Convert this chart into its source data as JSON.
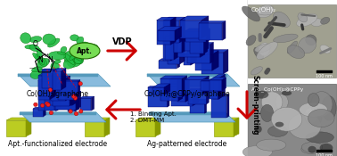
{
  "bg_color": "#ffffff",
  "top_left_label": "Co(OH)₂/graphene",
  "top_right_label": "Co(OH)₂@CPPy/graphene",
  "bot_left_label": "Apt.-functionalized electrode",
  "bot_right_label": "Ag-patterned electrode",
  "arrow_top_text": "VDP",
  "arrow_right_text": "Screen-printing",
  "arrow_bot_text1": "1. Binding Apt.",
  "arrow_bot_text2": "2. DMT-MM",
  "apt_label": "Apt.",
  "sem_top_label": "Co(OH)₂",
  "sem_bot_label": "Apt._Co(OH)₂@CPPy",
  "scale_bar": "100 nm",
  "arrow_color": "#cc0000",
  "green_color": "#22bb44",
  "green_dark": "#006600",
  "blue_color": "#1133bb",
  "blue_mid": "#0022aa",
  "blue_dark": "#000066",
  "graphene_color": "#88bbdd",
  "graphene_dark": "#5599bb",
  "electrode_color": "#bbcc22",
  "electrode_dark": "#889900",
  "red_dot_color": "#ee2222",
  "apt_fill": "#77dd55",
  "apt_edge": "#226600"
}
